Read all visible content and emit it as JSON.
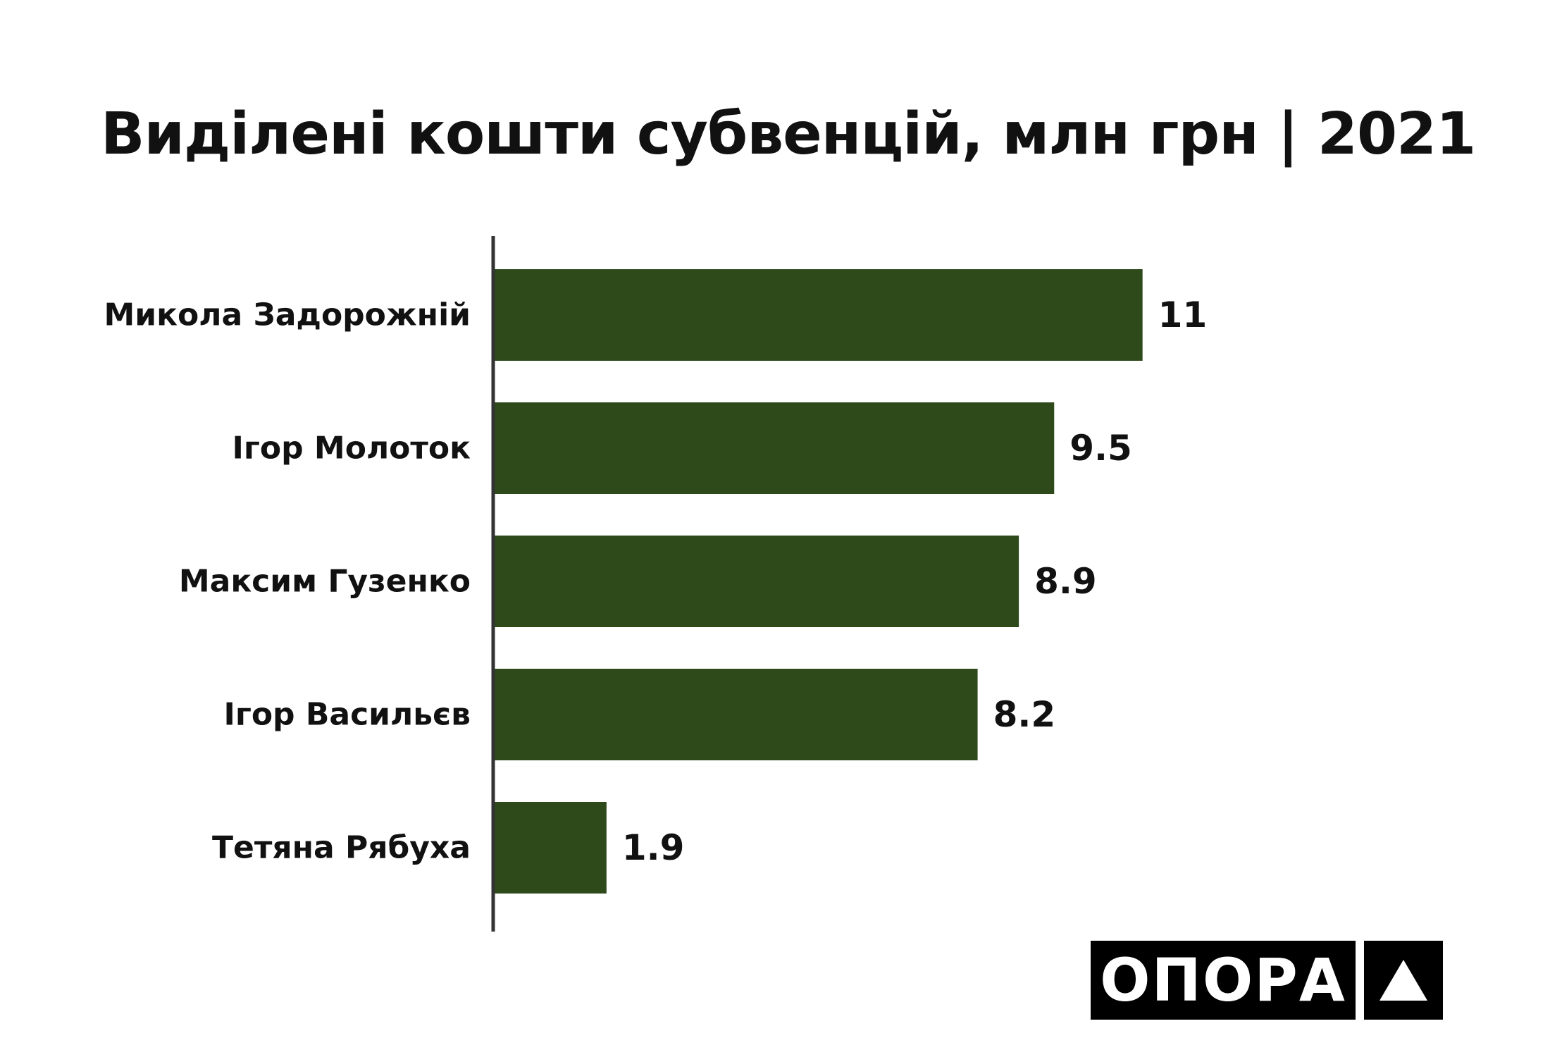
{
  "chart_data": {
    "type": "bar",
    "orientation": "horizontal",
    "title": "Виділені кошти субвенцій, млн грн | 2021",
    "categories": [
      "Микола Задорожній",
      "Ігор Молоток",
      "Максим Гузенко",
      "Ігор Васильєв",
      "Тетяна Рябуха"
    ],
    "values": [
      11,
      9.5,
      8.9,
      8.2,
      1.9
    ],
    "value_labels": [
      "11",
      "9.5",
      "8.9",
      "8.2",
      "1.9"
    ],
    "xlabel": "",
    "ylabel": "",
    "xlim": [
      0,
      12.2
    ],
    "grid": false,
    "legend": "none",
    "colors": {
      "bar": "#2e4a1b",
      "axis": "#333333",
      "text": "#111111"
    }
  },
  "logo": {
    "text": "ОПОРА",
    "icon": "triangle-icon"
  }
}
